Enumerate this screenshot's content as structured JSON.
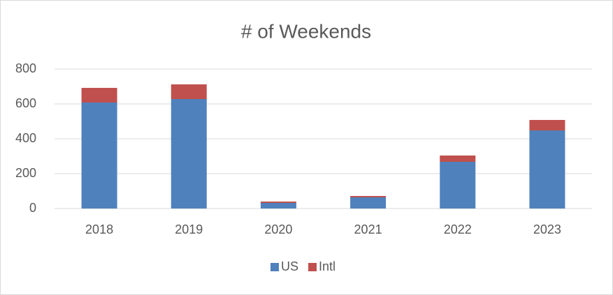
{
  "chart_data": {
    "type": "bar",
    "stacked": true,
    "title": "# of Weekends",
    "categories": [
      "2018",
      "2019",
      "2020",
      "2021",
      "2022",
      "2023"
    ],
    "series": [
      {
        "name": "US",
        "color": "#4f81bd",
        "values": [
          608,
          628,
          32,
          64,
          268,
          448
        ]
      },
      {
        "name": "Intl",
        "color": "#c0504d",
        "values": [
          84,
          84,
          8,
          8,
          36,
          60
        ]
      }
    ],
    "ylim": [
      0,
      800
    ],
    "yticks": [
      0,
      200,
      400,
      600,
      800
    ],
    "grid": true,
    "legend": "bottom"
  }
}
